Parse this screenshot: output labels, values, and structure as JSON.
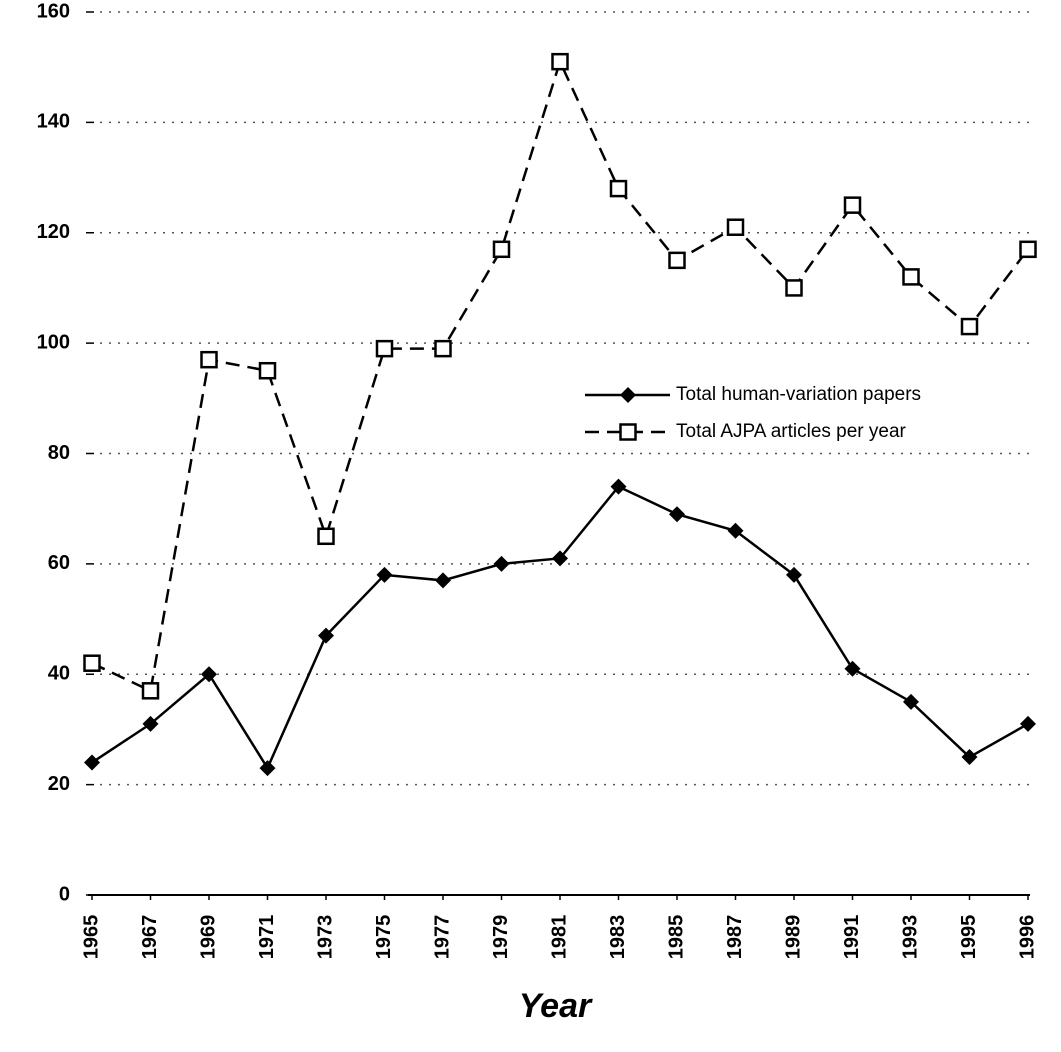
{
  "chart_data": {
    "type": "line",
    "x_label": "Year",
    "categories": [
      "1965",
      "1967",
      "1969",
      "1971",
      "1973",
      "1975",
      "1977",
      "1979",
      "1981",
      "1983",
      "1985",
      "1987",
      "1989",
      "1991",
      "1993",
      "1995",
      "1996"
    ],
    "series": [
      {
        "name": "Total human-variation papers",
        "color": "#000000",
        "marker": "diamond",
        "dashed": false,
        "values": [
          24,
          31,
          40,
          23,
          47,
          58,
          57,
          60,
          61,
          74,
          69,
          66,
          58,
          41,
          35,
          25,
          31
        ]
      },
      {
        "name": "Total AJPA articles per year",
        "color": "#000000",
        "marker": "square",
        "dashed": true,
        "values": [
          42,
          37,
          97,
          95,
          65,
          99,
          99,
          117,
          151,
          128,
          115,
          121,
          110,
          125,
          112,
          103,
          117
        ]
      }
    ],
    "ylim": [
      0,
      160
    ],
    "yticks": [
      0,
      20,
      40,
      60,
      80,
      100,
      120,
      140,
      160
    ],
    "grid": true
  }
}
